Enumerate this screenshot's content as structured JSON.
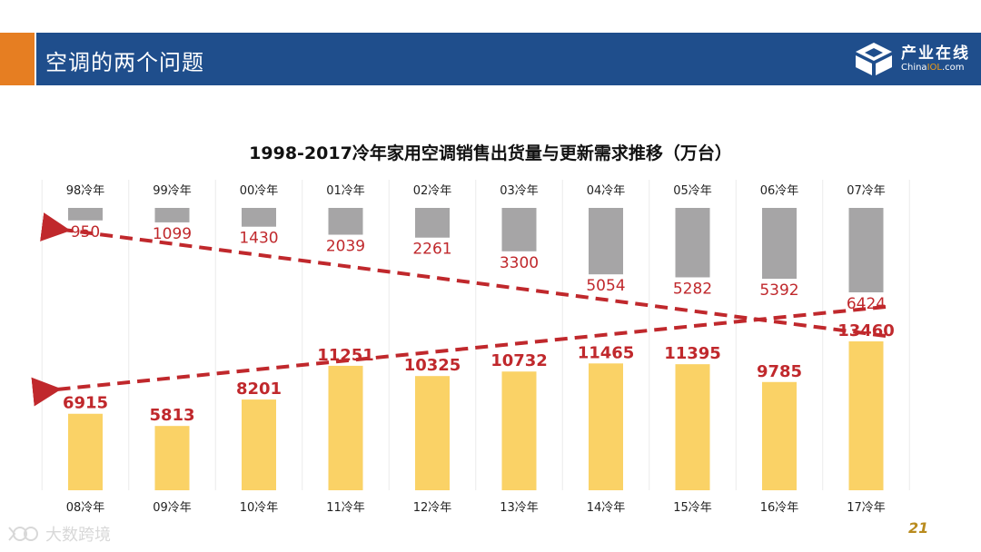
{
  "header": {
    "title": "空调的两个问题",
    "logo_cn": "产业在线",
    "logo_en_prefix": "China",
    "logo_en_highlight": "IOL",
    "logo_en_suffix": ".com"
  },
  "colors": {
    "header_bg": "#1f4e8c",
    "accent": "#e67e22",
    "gray_bar": "#a6a5a6",
    "yellow_bar": "#fad266",
    "trend": "#c0282c"
  },
  "chart_data": {
    "type": "bar",
    "title": "1998-2017冷年家用空调销售出货量与更新需求推移（万台）",
    "series": [
      {
        "name": "top",
        "categories": [
          "98冷年",
          "99冷年",
          "00冷年",
          "01冷年",
          "02冷年",
          "03冷年",
          "04冷年",
          "05冷年",
          "06冷年",
          "07冷年"
        ],
        "values": [
          950,
          1099,
          1430,
          2039,
          2261,
          3300,
          5054,
          5282,
          5392,
          6424
        ]
      },
      {
        "name": "bottom",
        "categories": [
          "08冷年",
          "09冷年",
          "10冷年",
          "11冷年",
          "12冷年",
          "13冷年",
          "14冷年",
          "15冷年",
          "16冷年",
          "17冷年"
        ],
        "values": [
          6915,
          5813,
          8201,
          11251,
          10325,
          10732,
          11465,
          11395,
          9785,
          13460
        ]
      }
    ],
    "trend_lines": [
      "top series increasing trend (arrow pointing left)",
      "bottom series increasing trend (arrow pointing left)"
    ]
  },
  "footer": {
    "watermark": "大数跨境",
    "page_number": "21"
  }
}
